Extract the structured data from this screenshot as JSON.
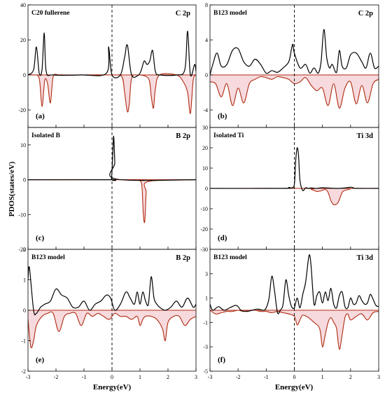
{
  "figure": {
    "ylabel": "PDOS(states/eV)",
    "xlabel": "Energy(eV)"
  },
  "colors": {
    "up_line": "#000000",
    "down_line": "#b02a10",
    "down_fill": "#f5d3d8",
    "zero_line": "#b02a10",
    "fermi_line": "#000000"
  },
  "chart_data": [
    {
      "type": "line",
      "panel_label": "(a)",
      "title": "C20 fullerene",
      "orbital": "C 2p",
      "xlim": [
        -3,
        3
      ],
      "ylim": [
        -30,
        40
      ],
      "yticks": [
        -20,
        0,
        20,
        40
      ],
      "xticks": [
        -3,
        -2,
        -1,
        0,
        1,
        2,
        3
      ],
      "fermi_level": 0,
      "series": [
        {
          "values_x": [
            -3.0,
            -2.8,
            -2.7,
            -2.6,
            -2.5,
            -2.42,
            -2.35,
            -2.1,
            -1.1,
            -0.2,
            -0.12,
            0.0,
            0.3,
            0.45,
            0.55,
            0.7,
            0.95,
            1.05,
            1.15,
            1.25,
            1.35,
            1.45,
            1.55,
            1.7,
            2.3,
            2.6,
            2.7,
            2.8,
            2.95,
            3.0
          ],
          "values_y": [
            0,
            3,
            16,
            1,
            3,
            24,
            2,
            0,
            0,
            1,
            16,
            0,
            0,
            10,
            17,
            0,
            0,
            3,
            8,
            6,
            8,
            14,
            2,
            0,
            0,
            3,
            25,
            0,
            6,
            2
          ]
        },
        {
          "values_x": [
            -3.0,
            -2.8,
            -2.6,
            -2.5,
            -2.4,
            -2.3,
            -2.2,
            -2.1,
            -1.9,
            -1.5,
            0.0,
            0.35,
            0.45,
            0.55,
            0.62,
            0.7,
            0.9,
            1.3,
            1.4,
            1.48,
            1.55,
            1.7,
            2.3,
            2.55,
            2.7,
            2.8,
            2.9,
            3.0
          ],
          "values_y": [
            0,
            0,
            -2,
            -18,
            -3,
            -5,
            -16,
            -1,
            0,
            0,
            0,
            -1,
            -10,
            -21,
            -16,
            -2,
            0,
            -2,
            -12,
            -19,
            -8,
            0,
            0,
            -4,
            -10,
            -22,
            -3,
            0
          ]
        }
      ]
    },
    {
      "type": "line",
      "panel_label": "(b)",
      "title": "B123 model",
      "orbital": "C 2p",
      "xlim": [
        -3,
        3
      ],
      "ylim": [
        -6,
        8
      ],
      "yticks": [
        -4,
        0,
        4,
        8
      ],
      "xticks": [
        -3,
        -2,
        -1,
        0,
        1,
        2,
        3
      ],
      "fermi_level": 0,
      "series": [
        {
          "values_x": [
            -3.0,
            -2.9,
            -2.75,
            -2.6,
            -2.4,
            -2.2,
            -2.0,
            -1.8,
            -1.6,
            -1.4,
            -1.2,
            -1.0,
            -0.8,
            -0.6,
            -0.4,
            -0.2,
            -0.1,
            -0.05,
            0.0,
            0.2,
            0.4,
            0.55,
            0.7,
            0.85,
            0.95,
            1.05,
            1.15,
            1.25,
            1.35,
            1.5,
            1.6,
            1.7,
            1.85,
            2.0,
            2.2,
            2.4,
            2.55,
            2.7,
            2.85,
            3.0
          ],
          "values_y": [
            0,
            1.2,
            2.5,
            1.0,
            1.2,
            2.8,
            3.0,
            1.5,
            1.0,
            1.8,
            1.2,
            0.2,
            0.5,
            0.3,
            0.8,
            1.5,
            3.0,
            3.5,
            2.5,
            0.8,
            1.2,
            0.2,
            0.8,
            0.2,
            1.5,
            5.2,
            2.0,
            0.8,
            1.2,
            0.3,
            2.8,
            1.0,
            0.8,
            2.3,
            2.5,
            1.5,
            0.8,
            2.5,
            0.8,
            1.0
          ]
        },
        {
          "values_x": [
            -3.0,
            -2.8,
            -2.6,
            -2.4,
            -2.2,
            -2.0,
            -1.8,
            -1.6,
            -1.4,
            -1.2,
            -1.0,
            -0.8,
            -0.6,
            -0.4,
            -0.2,
            0.0,
            0.2,
            0.4,
            0.6,
            0.8,
            1.0,
            1.2,
            1.4,
            1.6,
            1.8,
            2.0,
            2.2,
            2.4,
            2.6,
            2.8,
            3.0
          ],
          "values_y": [
            -0.8,
            -1.0,
            -2.5,
            -1.0,
            -3.5,
            -1.5,
            -3.2,
            -1.0,
            -0.5,
            -0.2,
            -0.3,
            -0.5,
            -0.2,
            -0.3,
            -0.5,
            -1.0,
            -0.8,
            -0.3,
            -1.2,
            -1.8,
            -1.5,
            -3.5,
            -1.0,
            -3.8,
            -1.5,
            -0.8,
            -3.3,
            -1.2,
            -3.2,
            -1.0,
            -0.5
          ]
        }
      ]
    },
    {
      "type": "line",
      "panel_label": "(c)",
      "title": "Isolated B",
      "orbital": "B 2p",
      "xlim": [
        -3,
        3
      ],
      "ylim": [
        -20,
        15
      ],
      "yticks": [
        -20,
        -10,
        0,
        10
      ],
      "xticks": [
        -3,
        -2,
        -1,
        0,
        1,
        2,
        3
      ],
      "fermi_level": 0,
      "series": [
        {
          "values_x": [
            -3.0,
            -0.1,
            -0.02,
            0.02,
            0.06,
            0.1,
            0.14,
            3.0
          ],
          "values_y": [
            0,
            0,
            0.3,
            6,
            12.5,
            5,
            0.2,
            0
          ]
        },
        {
          "values_x": [
            -3.0,
            0.8,
            1.0,
            1.07,
            1.12,
            1.17,
            1.22,
            1.3,
            3.0
          ],
          "values_y": [
            0,
            0,
            -0.3,
            -2,
            -10,
            -12,
            -4,
            -0.5,
            0
          ]
        }
      ]
    },
    {
      "type": "line",
      "panel_label": "(d)",
      "title": "Isolated Ti",
      "orbital": "Ti 3d",
      "xlim": [
        -3,
        3
      ],
      "ylim": [
        -30,
        30
      ],
      "yticks": [
        -30,
        -20,
        -10,
        0,
        10,
        20,
        30
      ],
      "xticks": [
        -3,
        -2,
        -1,
        0,
        1,
        2,
        3
      ],
      "fermi_level": 0,
      "series": [
        {
          "values_x": [
            -3.0,
            -0.4,
            -0.2,
            -0.1,
            0.0,
            0.05,
            0.1,
            0.15,
            0.2,
            0.3,
            0.4,
            0.5,
            0.6,
            0.8,
            1.0,
            1.5,
            1.8,
            2.0,
            2.1,
            2.2,
            3.0
          ],
          "values_y": [
            0,
            0,
            0.5,
            0.3,
            2,
            14,
            20,
            16,
            4,
            -1,
            0.3,
            0,
            0.2,
            0,
            0.3,
            0,
            0.2,
            0.6,
            0.3,
            0,
            0
          ]
        },
        {
          "values_x": [
            -3.0,
            0.4,
            0.6,
            0.8,
            1.0,
            1.1,
            1.2,
            1.3,
            1.4,
            1.55,
            1.7,
            1.8,
            1.95,
            2.1,
            3.0
          ],
          "values_y": [
            0,
            0,
            -0.5,
            -1.5,
            -1,
            -0.5,
            -2,
            -6,
            -8,
            -7,
            -2,
            -1,
            -0.5,
            0,
            0
          ]
        }
      ]
    },
    {
      "type": "line",
      "panel_label": "(e)",
      "title": "B123 model",
      "orbital": "B 2p",
      "xlim": [
        -3,
        3
      ],
      "ylim": [
        -2,
        2
      ],
      "yticks": [
        -2,
        -1,
        0,
        1,
        2
      ],
      "xticks": [
        -3,
        -2,
        -1,
        0,
        1,
        2,
        3
      ],
      "fermi_level": 0,
      "series": [
        {
          "values_x": [
            -3.0,
            -2.95,
            -2.8,
            -2.7,
            -2.55,
            -2.4,
            -2.2,
            -2.0,
            -1.8,
            -1.6,
            -1.4,
            -1.2,
            -1.0,
            -0.8,
            -0.6,
            -0.4,
            -0.2,
            -0.05,
            0.1,
            0.3,
            0.5,
            0.65,
            0.8,
            0.9,
            1.0,
            1.1,
            1.2,
            1.3,
            1.4,
            1.5,
            1.6,
            1.7,
            1.9,
            2.1,
            2.3,
            2.5,
            2.7,
            2.9,
            3.0
          ],
          "values_y": [
            1.0,
            1.4,
            0.0,
            -0.1,
            0.1,
            0.2,
            0.3,
            0.7,
            0.5,
            0.4,
            0.1,
            0.1,
            0.3,
            0.0,
            0.2,
            0.3,
            0.5,
            0.4,
            0.0,
            0.2,
            0.6,
            0.4,
            0.2,
            0.6,
            0.2,
            0.6,
            0.3,
            0.2,
            1.1,
            0.4,
            0.2,
            0.1,
            0.0,
            0.1,
            0.3,
            0.1,
            0.4,
            0.1,
            0.2
          ]
        },
        {
          "values_x": [
            -3.0,
            -2.9,
            -2.8,
            -2.7,
            -2.5,
            -2.3,
            -2.1,
            -1.9,
            -1.7,
            -1.5,
            -1.3,
            -1.1,
            -0.9,
            -0.7,
            -0.5,
            -0.3,
            -0.1,
            0.1,
            0.3,
            0.5,
            0.7,
            0.9,
            1.0,
            1.1,
            1.2,
            1.4,
            1.6,
            1.8,
            1.9,
            2.0,
            2.2,
            2.4,
            2.6,
            2.8,
            3.0
          ],
          "values_y": [
            -0.3,
            -1.2,
            -1.0,
            -0.5,
            -0.2,
            -0.1,
            -0.1,
            -0.7,
            -0.2,
            -0.1,
            -0.1,
            -0.5,
            -0.1,
            -0.2,
            -0.1,
            -0.2,
            -0.3,
            -0.1,
            -0.2,
            -0.2,
            -0.3,
            -0.2,
            -0.5,
            -0.3,
            -0.2,
            -0.2,
            -0.3,
            -0.6,
            -1.0,
            -0.4,
            -0.2,
            -0.2,
            -0.5,
            -0.3,
            -0.2
          ]
        }
      ]
    },
    {
      "type": "line",
      "panel_label": "(f)",
      "title": "B123 model",
      "orbital": "Ti 3d",
      "xlim": [
        -3,
        3
      ],
      "ylim": [
        -5,
        5
      ],
      "yticks": [
        -5,
        -3,
        -1,
        1,
        3
      ],
      "xticks": [
        -3,
        -2,
        -1,
        0,
        1,
        2,
        3
      ],
      "fermi_level": 0,
      "series": [
        {
          "values_x": [
            -3.0,
            -2.9,
            -2.7,
            -2.5,
            -2.3,
            -2.1,
            -2.0,
            -1.9,
            -1.7,
            -1.5,
            -1.3,
            -1.1,
            -1.0,
            -0.9,
            -0.8,
            -0.7,
            -0.6,
            -0.5,
            -0.4,
            -0.3,
            -0.2,
            -0.1,
            0.0,
            0.1,
            0.2,
            0.3,
            0.4,
            0.5,
            0.55,
            0.6,
            0.7,
            0.8,
            0.9,
            1.0,
            1.1,
            1.2,
            1.3,
            1.4,
            1.5,
            1.6,
            1.7,
            1.8,
            1.9,
            2.0,
            2.1,
            2.2,
            2.3,
            2.4,
            2.5,
            2.6,
            2.7,
            2.8,
            2.9,
            3.0
          ],
          "values_y": [
            0.5,
            0.0,
            0.3,
            0.0,
            0.2,
            0.4,
            0.3,
            0.0,
            -0.1,
            0.0,
            0.1,
            0.0,
            0.2,
            1.0,
            2.8,
            1.5,
            -0.2,
            0.0,
            0.5,
            2.5,
            1.2,
            0.3,
            0.2,
            1.0,
            0.2,
            1.3,
            2.3,
            4.2,
            4.5,
            3.5,
            0.5,
            1.2,
            1.5,
            0.6,
            1.5,
            0.8,
            1.8,
            0.5,
            0.2,
            1.2,
            1.5,
            0.3,
            0.2,
            1.0,
            0.5,
            0.6,
            1.2,
            0.8,
            0.5,
            0.6,
            1.3,
            0.9,
            0.4,
            0.3
          ]
        },
        {
          "values_x": [
            -3.0,
            -2.8,
            -2.6,
            -2.4,
            -2.2,
            -2.0,
            -1.8,
            -1.6,
            -1.4,
            -1.2,
            -1.0,
            -0.8,
            -0.6,
            -0.4,
            -0.2,
            0.0,
            0.1,
            0.2,
            0.3,
            0.5,
            0.7,
            0.9,
            1.0,
            1.1,
            1.2,
            1.3,
            1.4,
            1.5,
            1.6,
            1.7,
            1.8,
            1.9,
            2.0,
            2.2,
            2.4,
            2.6,
            2.8,
            3.0
          ],
          "values_y": [
            0.0,
            -0.3,
            -0.2,
            -0.1,
            -0.1,
            0.0,
            -0.1,
            0.0,
            0.0,
            -0.1,
            -0.1,
            -0.2,
            -0.1,
            -0.2,
            -0.3,
            -0.5,
            -1.2,
            -0.8,
            -0.4,
            -0.6,
            -1.0,
            -1.5,
            -3.0,
            -2.0,
            -1.0,
            -0.6,
            -1.0,
            -1.5,
            -3.2,
            -2.0,
            -0.6,
            -0.3,
            -0.8,
            -0.5,
            -0.3,
            -0.8,
            -0.2,
            -0.1
          ]
        }
      ]
    }
  ]
}
